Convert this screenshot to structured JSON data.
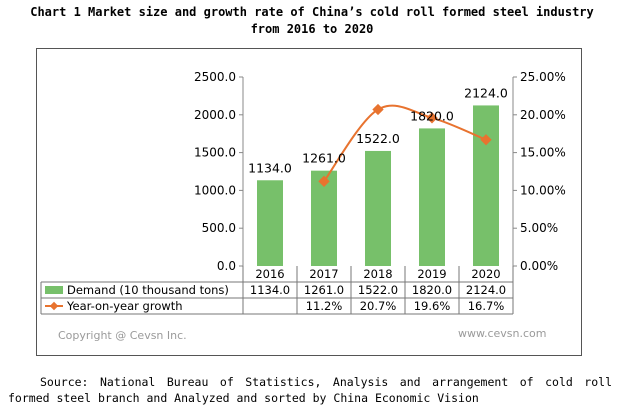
{
  "page": {
    "title": "Chart 1 Market size and growth rate of China’s cold roll formed steel industry from 2016 to 2020",
    "source": "Source: National Bureau of Statistics, Analysis and arrangement of cold roll formed steel branch and Analyzed and sorted by China Economic Vision"
  },
  "watermark": {
    "left": "Copyright @ Cevsn Inc.",
    "right": "www.cevsn.com"
  },
  "chart_data": {
    "type": "bar",
    "categories": [
      "2016",
      "2017",
      "2018",
      "2019",
      "2020"
    ],
    "series": [
      {
        "name": "Demand (10 thousand tons)",
        "type": "bar",
        "axis": "left",
        "color": "#77c06a",
        "values": [
          1134.0,
          1261.0,
          1522.0,
          1820.0,
          2124.0
        ],
        "labels": [
          "1134.0",
          "1261.0",
          "1522.0",
          "1820.0",
          "2124.0"
        ],
        "table": [
          "1134.0",
          "1261.0",
          "1522.0",
          "1820.0",
          "2124.0"
        ]
      },
      {
        "name": "Year-on-year growth",
        "type": "line",
        "axis": "right",
        "color": "#e8732f",
        "smooth": true,
        "values": [
          null,
          11.2,
          20.7,
          19.6,
          16.7
        ],
        "table": [
          "",
          "11.2%",
          "20.7%",
          "19.6%",
          "16.7%"
        ]
      }
    ],
    "ylim": [
      0,
      2500
    ],
    "y_ticks": [
      "0.0",
      "500.0",
      "1000.0",
      "1500.0",
      "2000.0",
      "2500.0"
    ],
    "y2lim": [
      0,
      25
    ],
    "y2_ticks": [
      "0.00%",
      "5.00%",
      "10.00%",
      "15.00%",
      "20.00%",
      "25.00%"
    ],
    "grid": false,
    "data_table": true
  }
}
